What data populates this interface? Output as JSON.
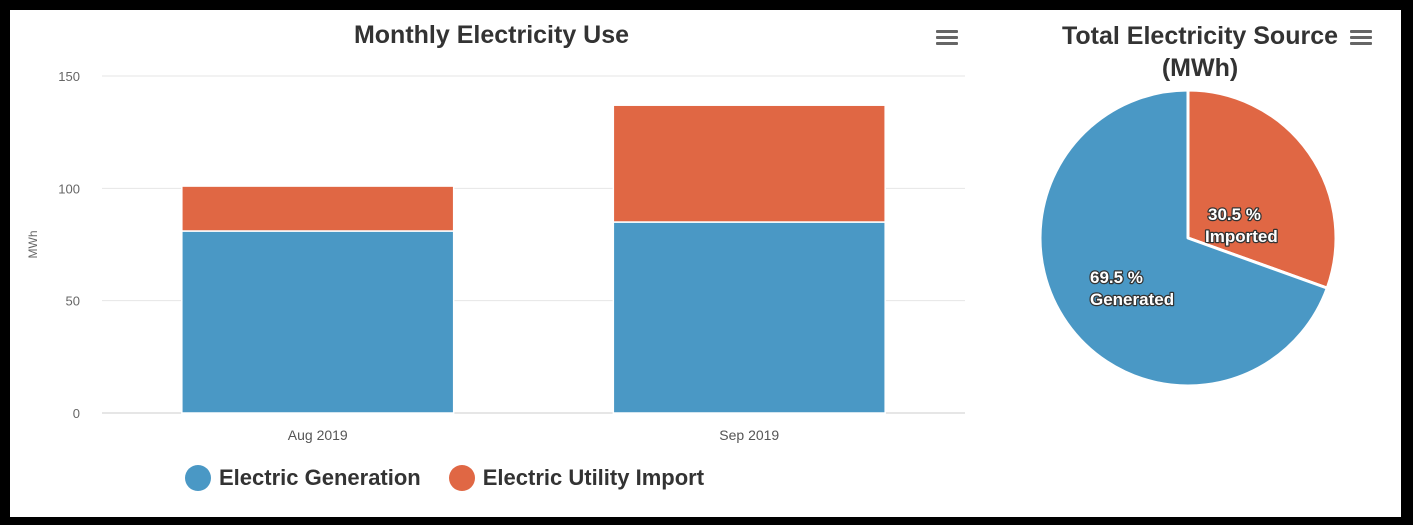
{
  "chart_data": [
    {
      "type": "bar",
      "stacked": true,
      "title": "Monthly Electricity Use",
      "xlabel": "",
      "ylabel": "MWh",
      "categories": [
        "Aug 2019",
        "Sep 2019"
      ],
      "series": [
        {
          "name": "Electric Generation",
          "values": [
            81,
            85
          ],
          "color": "#4a98c5"
        },
        {
          "name": "Electric Utility Import",
          "values": [
            20,
            52
          ],
          "color": "#e06744"
        }
      ],
      "ylim": [
        0,
        150
      ],
      "yticks": [
        0,
        50,
        100,
        150
      ],
      "grid": true,
      "legend": "bottom-center"
    },
    {
      "type": "pie",
      "title": "Total Electricity Source (MWh)",
      "slices": [
        {
          "name": "Imported",
          "value": 30.5,
          "label": "30.5 %",
          "color": "#e06744"
        },
        {
          "name": "Generated",
          "value": 69.5,
          "label": "69.5 %",
          "color": "#4a98c5"
        }
      ],
      "legend": "none"
    }
  ],
  "menu_icon": "hamburger-menu-icon",
  "colors": {
    "gridline": "#e6e6e6",
    "axis": "#cccccc",
    "title": "#333333"
  }
}
